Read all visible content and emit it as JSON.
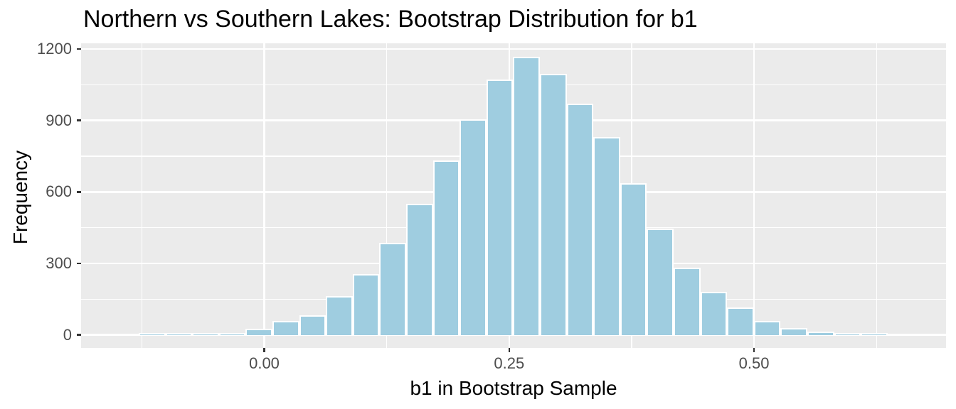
{
  "chart_data": {
    "type": "histogram",
    "title": "Northern vs Southern Lakes: Bootstrap Distribution for b1",
    "xlabel": "b1 in Bootstrap Sample",
    "ylabel": "Frequency",
    "legend_position": "none",
    "grid": true,
    "xlim": [
      -0.187,
      0.696
    ],
    "ylim": [
      -55,
      1224
    ],
    "x_tick_values": [
      0,
      0.25,
      0.5
    ],
    "x_tick_labels": [
      "0.00",
      "0.25",
      "0.50"
    ],
    "y_tick_values": [
      0,
      300,
      600,
      900,
      1200
    ],
    "y_tick_labels": [
      "0",
      "300",
      "600",
      "900",
      "1200"
    ],
    "x_minor_values": [
      -0.125,
      0.125,
      0.375,
      0.625
    ],
    "y_minor_values": [
      150,
      450,
      750,
      1050
    ],
    "bin_width": 0.0273,
    "bins": [
      {
        "x0": -0.1281,
        "n": 1
      },
      {
        "x0": -0.1008,
        "n": 1
      },
      {
        "x0": -0.0735,
        "n": 2
      },
      {
        "x0": -0.0462,
        "n": 3
      },
      {
        "x0": -0.0189,
        "n": 20
      },
      {
        "x0": 0.0084,
        "n": 52
      },
      {
        "x0": 0.0357,
        "n": 77
      },
      {
        "x0": 0.063,
        "n": 158
      },
      {
        "x0": 0.0903,
        "n": 250
      },
      {
        "x0": 0.1176,
        "n": 380
      },
      {
        "x0": 0.1449,
        "n": 545
      },
      {
        "x0": 0.1722,
        "n": 725
      },
      {
        "x0": 0.1995,
        "n": 900
      },
      {
        "x0": 0.2268,
        "n": 1065
      },
      {
        "x0": 0.2541,
        "n": 1160
      },
      {
        "x0": 0.2814,
        "n": 1090
      },
      {
        "x0": 0.3087,
        "n": 965
      },
      {
        "x0": 0.336,
        "n": 825
      },
      {
        "x0": 0.3633,
        "n": 630
      },
      {
        "x0": 0.3906,
        "n": 440
      },
      {
        "x0": 0.4179,
        "n": 277
      },
      {
        "x0": 0.4452,
        "n": 174
      },
      {
        "x0": 0.4725,
        "n": 108
      },
      {
        "x0": 0.4998,
        "n": 51
      },
      {
        "x0": 0.5271,
        "n": 23
      },
      {
        "x0": 0.5544,
        "n": 9
      },
      {
        "x0": 0.5817,
        "n": 2
      },
      {
        "x0": 0.609,
        "n": 1
      }
    ],
    "colors": {
      "bar_fill": "#9FCDE0",
      "bar_border": "#FFFFFF",
      "panel_bg": "#EBEBEB",
      "grid": "#FFFFFF",
      "tick_text": "#4D4D4D",
      "axis_title_text": "#000000",
      "title_text": "#000000",
      "tick_mark": "#333333"
    }
  }
}
